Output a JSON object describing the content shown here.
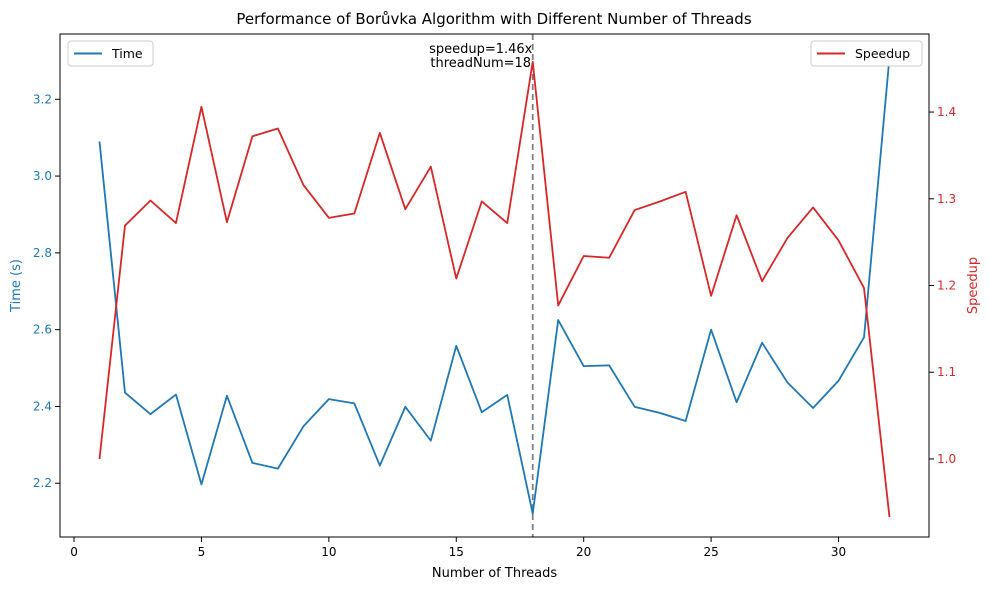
{
  "chart_data": {
    "type": "line",
    "title": "Performance of Borůvka Algorithm with Different Number of Threads",
    "xlabel": "Number of Threads",
    "ylabel_left": "Time (s)",
    "ylabel_right": "Speedup",
    "xlim": [
      -0.55,
      33.55
    ],
    "ylim_left": [
      2.06,
      3.37
    ],
    "ylim_right": [
      0.91,
      1.49
    ],
    "x_ticks": [
      0,
      5,
      10,
      15,
      20,
      25,
      30
    ],
    "y_left_ticks": [
      2.2,
      2.4,
      2.6,
      2.8,
      3.0,
      3.2
    ],
    "y_right_ticks": [
      1.0,
      1.1,
      1.2,
      1.3,
      1.4
    ],
    "grid": false,
    "x": [
      1,
      2,
      3,
      4,
      5,
      6,
      7,
      8,
      9,
      10,
      11,
      12,
      13,
      14,
      15,
      16,
      17,
      18,
      19,
      20,
      21,
      22,
      23,
      24,
      25,
      26,
      27,
      28,
      29,
      30,
      31,
      32
    ],
    "series": [
      {
        "name": "Time",
        "axis": "left",
        "color": "#1f77b4",
        "values": [
          3.09,
          2.436,
          2.38,
          2.431,
          2.197,
          2.428,
          2.253,
          2.238,
          2.348,
          2.419,
          2.408,
          2.246,
          2.399,
          2.311,
          2.558,
          2.385,
          2.43,
          2.121,
          2.625,
          2.505,
          2.507,
          2.399,
          2.383,
          2.362,
          2.6,
          2.411,
          2.566,
          2.462,
          2.396,
          2.467,
          2.58,
          3.31
        ]
      },
      {
        "name": "Speedup",
        "axis": "right",
        "color": "#d62728",
        "values": [
          1.0,
          1.269,
          1.298,
          1.272,
          1.406,
          1.273,
          1.372,
          1.381,
          1.316,
          1.278,
          1.283,
          1.376,
          1.288,
          1.337,
          1.208,
          1.297,
          1.272,
          1.458,
          1.177,
          1.234,
          1.232,
          1.287,
          1.297,
          1.308,
          1.188,
          1.281,
          1.205,
          1.255,
          1.29,
          1.252,
          1.197,
          0.933
        ]
      }
    ],
    "vline": {
      "x": 18,
      "color": "#808080",
      "style": "dashed"
    },
    "annotation": {
      "lines": [
        "speedup=1.46x",
        "threadNum=18"
      ],
      "x": 18
    },
    "legend_left": {
      "placement": "upper-left",
      "label": "Time"
    },
    "legend_right": {
      "placement": "upper-right",
      "label": "Speedup"
    }
  }
}
